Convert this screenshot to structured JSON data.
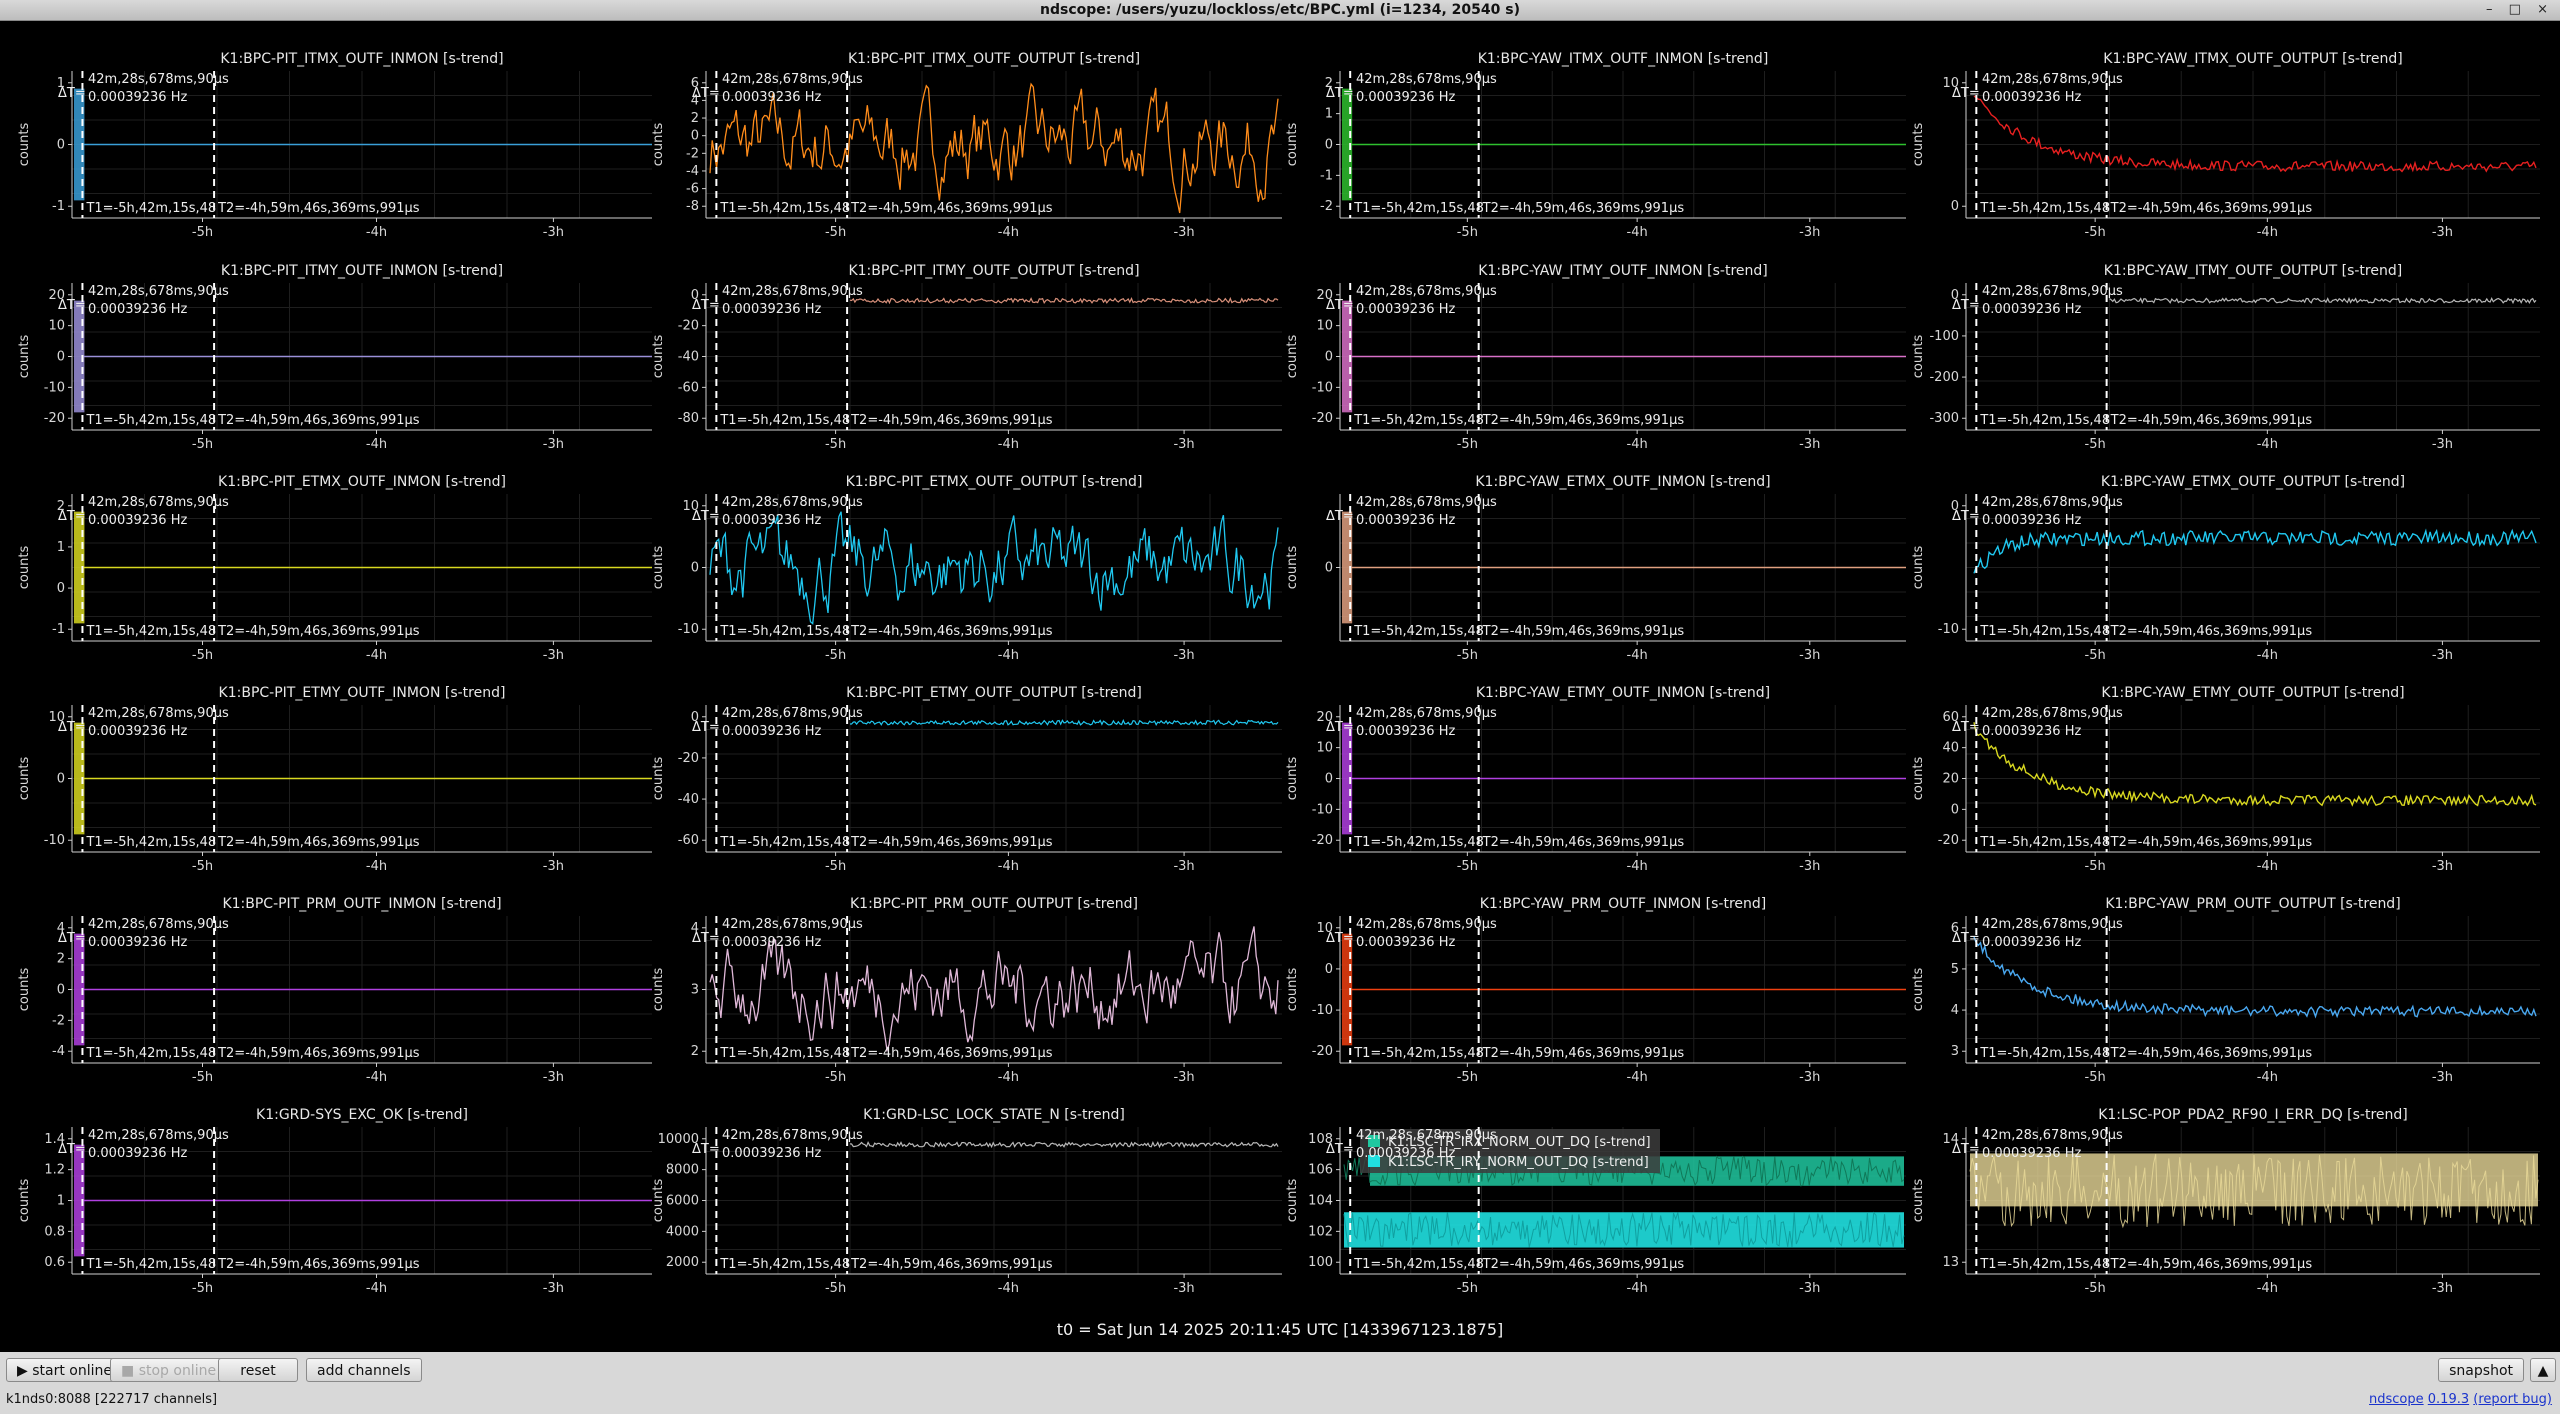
{
  "window": {
    "title": "ndscope: /users/yuzu/lockloss/etc/BPC.yml (i=1234, 20540 s)",
    "controls": "– □ ×"
  },
  "plot_common": {
    "ylabel": "counts",
    "dt_label": "ΔT=",
    "cursor_dt": "42m,28s,678ms,90μs",
    "cursor_freq": "0.00039236 Hz",
    "t1_label": "T1=-5h,42m,15s,48",
    "t2_label": "T2=-4h,59m,46s,369ms,991μs",
    "x_ticks": [
      "-5h",
      "-4h",
      "-3h"
    ]
  },
  "colors": {
    "blue": "#3a9fd8",
    "orange": "#ff8c1a",
    "green": "#2ec02e",
    "red": "#e82020",
    "lavender": "#9a8fd8",
    "salmon": "#d8907a",
    "pink": "#d870c8",
    "gray": "#b8b8b8",
    "yellow": "#d8d820",
    "cyan": "#20c8f0",
    "peach": "#e0a080",
    "violet": "#b040e0",
    "lightpink": "#e0b8d8",
    "orangered": "#f04010",
    "skyblue": "#4aa8f0",
    "khaki": "#e8d898",
    "teal": "#20c8a0",
    "turquoise": "#20e0e0"
  },
  "plots": [
    {
      "title": "K1:BPC-PIT_ITMX_OUTF_INMON [s-trend]",
      "yticks": [
        "1",
        "0",
        "-1"
      ],
      "color": "blue",
      "shape": "flat"
    },
    {
      "title": "K1:BPC-PIT_ITMX_OUTF_OUTPUT [s-trend]",
      "yticks": [
        "6",
        "4",
        "2",
        "0",
        "-2",
        "-4",
        "-6",
        "-8"
      ],
      "color": "orange",
      "shape": "noisy"
    },
    {
      "title": "K1:BPC-YAW_ITMX_OUTF_INMON [s-trend]",
      "yticks": [
        "2",
        "1",
        "0",
        "-1",
        "-2"
      ],
      "color": "green",
      "shape": "flat"
    },
    {
      "title": "K1:BPC-YAW_ITMX_OUTF_OUTPUT [s-trend]",
      "yticks": [
        "10",
        "0"
      ],
      "color": "red",
      "shape": "decay"
    },
    {
      "title": "K1:BPC-PIT_ITMY_OUTF_INMON [s-trend]",
      "yticks": [
        "20",
        "10",
        "0",
        "-10",
        "-20"
      ],
      "color": "lavender",
      "shape": "flat"
    },
    {
      "title": "K1:BPC-PIT_ITMY_OUTF_OUTPUT [s-trend]",
      "yticks": [
        "0",
        "-20",
        "-40",
        "-60",
        "-80"
      ],
      "color": "salmon",
      "shape": "top"
    },
    {
      "title": "K1:BPC-YAW_ITMY_OUTF_INMON [s-trend]",
      "yticks": [
        "20",
        "10",
        "0",
        "-10",
        "-20"
      ],
      "color": "pink",
      "shape": "flat"
    },
    {
      "title": "K1:BPC-YAW_ITMY_OUTF_OUTPUT [s-trend]",
      "yticks": [
        "0",
        "-100",
        "-200",
        "-300"
      ],
      "color": "gray",
      "shape": "top"
    },
    {
      "title": "K1:BPC-PIT_ETMX_OUTF_INMON [s-trend]",
      "yticks": [
        "2",
        "1",
        "0",
        "-1"
      ],
      "color": "yellow",
      "shape": "flat"
    },
    {
      "title": "K1:BPC-PIT_ETMX_OUTF_OUTPUT [s-trend]",
      "yticks": [
        "10",
        "0",
        "-10"
      ],
      "color": "cyan",
      "shape": "noisy"
    },
    {
      "title": "K1:BPC-YAW_ETMX_OUTF_INMON [s-trend]",
      "yticks": [
        "0"
      ],
      "color": "peach",
      "shape": "flat"
    },
    {
      "title": "K1:BPC-YAW_ETMX_OUTF_OUTPUT [s-trend]",
      "yticks": [
        "0",
        "-10"
      ],
      "color": "cyan",
      "shape": "rise"
    },
    {
      "title": "K1:BPC-PIT_ETMY_OUTF_INMON [s-trend]",
      "yticks": [
        "10",
        "0",
        "-10"
      ],
      "color": "yellow",
      "shape": "flat"
    },
    {
      "title": "K1:BPC-PIT_ETMY_OUTF_OUTPUT [s-trend]",
      "yticks": [
        "0",
        "-20",
        "-40",
        "-60"
      ],
      "color": "cyan",
      "shape": "top"
    },
    {
      "title": "K1:BPC-YAW_ETMY_OUTF_INMON [s-trend]",
      "yticks": [
        "20",
        "10",
        "0",
        "-10",
        "-20"
      ],
      "color": "violet",
      "shape": "flat"
    },
    {
      "title": "K1:BPC-YAW_ETMY_OUTF_OUTPUT [s-trend]",
      "yticks": [
        "60",
        "40",
        "20",
        "0",
        "-20"
      ],
      "color": "yellow",
      "shape": "decay"
    },
    {
      "title": "K1:BPC-PIT_PRM_OUTF_INMON [s-trend]",
      "yticks": [
        "4",
        "2",
        "0",
        "-2",
        "-4"
      ],
      "color": "violet",
      "shape": "flat"
    },
    {
      "title": "K1:BPC-PIT_PRM_OUTF_OUTPUT [s-trend]",
      "yticks": [
        "4",
        "3",
        "2"
      ],
      "color": "lightpink",
      "shape": "noisy"
    },
    {
      "title": "K1:BPC-YAW_PRM_OUTF_INMON [s-trend]",
      "yticks": [
        "10",
        "0",
        "-10",
        "-20"
      ],
      "color": "orangered",
      "shape": "flat"
    },
    {
      "title": "K1:BPC-YAW_PRM_OUTF_OUTPUT [s-trend]",
      "yticks": [
        "6",
        "5",
        "4",
        "3"
      ],
      "color": "skyblue",
      "shape": "decay"
    },
    {
      "title": "K1:GRD-SYS_EXC_OK [s-trend]",
      "yticks": [
        "1.4",
        "1.2",
        "1",
        "0.8",
        "0.6"
      ],
      "color": "violet",
      "shape": "flat"
    },
    {
      "title": "K1:GRD-LSC_LOCK_STATE_N [s-trend]",
      "yticks": [
        "10000",
        "8000",
        "6000",
        "4000",
        "2000"
      ],
      "color": "gray",
      "shape": "top"
    },
    {
      "title": "",
      "yticks": [
        "108",
        "106",
        "104",
        "102",
        "100"
      ],
      "color": "teal",
      "shape": "double",
      "legend": [
        "K1:LSC-TR_IRX_NORM_OUT_DQ [s-trend]",
        "K1:LSC-TR_IRY_NORM_OUT_DQ [s-trend]"
      ],
      "legend_colors": [
        "teal",
        "turquoise"
      ]
    },
    {
      "title": "K1:LSC-POP_PDA2_RF90_I_ERR_DQ [s-trend]",
      "yticks": [
        "14",
        "13"
      ],
      "color": "khaki",
      "shape": "band"
    }
  ],
  "t0": "t0 = Sat Jun 14 2025 20:11:45 UTC [1433967123.1875]",
  "buttons": {
    "start_online": "start online",
    "stop_online": "stop online",
    "reset": "reset",
    "add_channels": "add channels",
    "snapshot": "snapshot"
  },
  "status": "k1nds0:8088  [222717 channels]",
  "version": {
    "app": "ndscope",
    "number": "0.19.3",
    "report": "(report bug)"
  }
}
